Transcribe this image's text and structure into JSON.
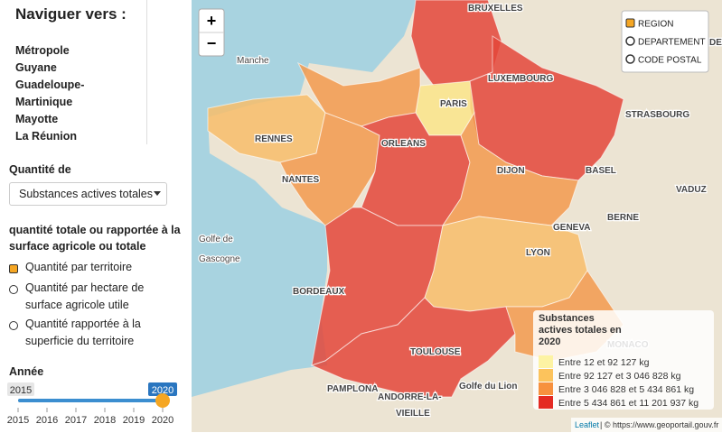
{
  "sidebar": {
    "title": "Naviguer vers :",
    "nav": [
      "Métropole",
      "Guyane",
      "Guadeloupe-",
      "Martinique",
      "Mayotte",
      "La Réunion"
    ],
    "quantity_label": "Quantité de",
    "select_value": "Substances actives totales",
    "question": "quantité totale ou rapportée à la surface agricole ou totale",
    "options": [
      "Quantité par territoire",
      "Quantité par hectare de surface agricole utile",
      "Quantité rapportée à la superficie du territoire"
    ],
    "year_label": "Année",
    "slider": {
      "min": 2015,
      "max": 2020,
      "value": 2020,
      "ticks": [
        2015,
        2016,
        2017,
        2018,
        2019,
        2020
      ]
    }
  },
  "map": {
    "zoom_in": "+",
    "zoom_out": "−",
    "layers": [
      "REGION",
      "DEPARTEMENT",
      "CODE POSTAL"
    ],
    "legend": {
      "title": "Substances actives totales en 2020",
      "entries": [
        {
          "label": "Entre 12 et 92 127 kg",
          "color": "#fdf3a3"
        },
        {
          "label": "Entre 92 127 et 3 046 828 kg",
          "color": "#fcc35c"
        },
        {
          "label": "Entre 3 046 828 et 5 434 861 kg",
          "color": "#f7913e"
        },
        {
          "label": "Entre 5 434 861 et 11 201 937 kg",
          "color": "#e42a22"
        }
      ]
    },
    "attribution": {
      "link": "Leaflet",
      "text": "| © https://www.geoportail.gouv.fr"
    },
    "labels": [
      "Manche",
      "Golfe de",
      "Gascogne",
      "PARIS",
      "LUXEMBOURG",
      "BRUXELLES",
      "ORLEANS",
      "RENNES",
      "NANTES",
      "DIJON",
      "LYON",
      "BORDEAUX",
      "TOULOUSE",
      "ANDORRE-LA-",
      "VIEILLE",
      "STRASBOURG",
      "BASEL",
      "BERNE",
      "GENEVA",
      "Golfe du Lion",
      "MONACO",
      "PAMPLONA",
      "WIESBADEN",
      "VADUZ"
    ]
  }
}
